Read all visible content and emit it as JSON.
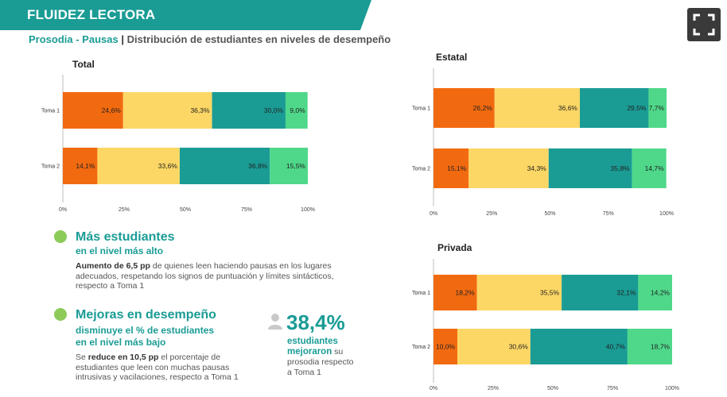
{
  "header": {
    "title": "FLUIDEZ LECTORA",
    "subtitle_topic": "Prosodia - Pausas",
    "subtitle_sep": " | ",
    "subtitle_desc": "Distribución de estudiantes en niveles de desempeño"
  },
  "controls": {
    "expand_icon": "expand-icon"
  },
  "colors": {
    "level1": "#f26a10",
    "level2": "#fdd765",
    "level3": "#1a9c95",
    "level4": "#4fd88a"
  },
  "chart_data": [
    {
      "type": "bar",
      "orientation": "horizontal",
      "stacked": true,
      "title": "Total",
      "categories": [
        "Toma 1",
        "Toma 2"
      ],
      "series": [
        {
          "values": [
            24.6,
            14.1
          ],
          "labels": [
            "24,6%",
            "14,1%"
          ]
        },
        {
          "values": [
            36.3,
            33.6
          ],
          "labels": [
            "36,3%",
            "33,6%"
          ]
        },
        {
          "values": [
            30.0,
            36.8
          ],
          "labels": [
            "30,0%",
            "36,8%"
          ]
        },
        {
          "values": [
            9.0,
            15.5
          ],
          "labels": [
            "9,0%",
            "15,5%"
          ]
        }
      ],
      "xlim": [
        0,
        100
      ],
      "xticks": [
        "0%",
        "25%",
        "50%",
        "75%",
        "100%"
      ]
    },
    {
      "type": "bar",
      "orientation": "horizontal",
      "stacked": true,
      "title": "Estatal",
      "categories": [
        "Toma 1",
        "Toma 2"
      ],
      "series": [
        {
          "values": [
            26.2,
            15.1
          ],
          "labels": [
            "26,2%",
            "15,1%"
          ]
        },
        {
          "values": [
            36.6,
            34.3
          ],
          "labels": [
            "36,6%",
            "34,3%"
          ]
        },
        {
          "values": [
            29.5,
            35.8
          ],
          "labels": [
            "29,5%",
            "35,8%"
          ]
        },
        {
          "values": [
            7.7,
            14.7
          ],
          "labels": [
            "7,7%",
            "14,7%"
          ]
        }
      ],
      "xlim": [
        0,
        100
      ],
      "xticks": [
        "0%",
        "25%",
        "50%",
        "75%",
        "100%"
      ]
    },
    {
      "type": "bar",
      "orientation": "horizontal",
      "stacked": true,
      "title": "Privada",
      "categories": [
        "Toma 1",
        "Toma 2"
      ],
      "series": [
        {
          "values": [
            18.2,
            10.0
          ],
          "labels": [
            "18,2%",
            "10,0%"
          ]
        },
        {
          "values": [
            35.5,
            30.6
          ],
          "labels": [
            "35,5%",
            "30,6%"
          ]
        },
        {
          "values": [
            32.1,
            40.7
          ],
          "labels": [
            "32,1%",
            "40,7%"
          ]
        },
        {
          "values": [
            14.2,
            18.7
          ],
          "labels": [
            "14,2%",
            "18,7%"
          ]
        }
      ],
      "xlim": [
        0,
        100
      ],
      "xticks": [
        "0%",
        "25%",
        "50%",
        "75%",
        "100%"
      ]
    }
  ],
  "insights": [
    {
      "heading": "Más estudiantes",
      "subheading": "en el nivel  más alto",
      "body_bold": "Aumento de 6,5 pp",
      "body_rest": " de quienes leen haciendo pausas en los lugares adecuados, respetando los signos de puntuación y límites sintácticos, respecto a Toma 1"
    },
    {
      "heading": "Mejoras en desempeño",
      "subheading_line1": "disminuye el % de estudiantes",
      "subheading_line2": "en el nivel más bajo",
      "body_pre": "Se ",
      "body_bold": "reduce en 10,5 pp",
      "body_rest": " el porcentaje de estudiantes que leen con muchas pausas intrusivas y vacilaciones, respecto a Toma 1"
    }
  ],
  "highlight": {
    "icon": "person-icon",
    "value": "38,4%",
    "label_line1": "estudiantes",
    "label_line2": "mejoraron",
    "rest_a": " su",
    "rest_b": "prosodia respecto",
    "rest_c": "a Toma 1"
  }
}
